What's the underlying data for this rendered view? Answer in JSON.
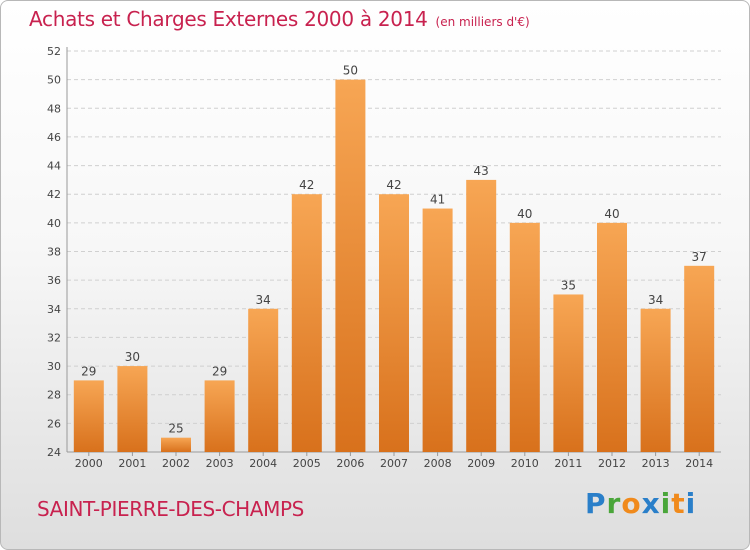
{
  "title": "Achats et Charges Externes 2000 à 2014",
  "unit_note": "(en milliers d'€)",
  "commune": "SAINT-PIERRE-DES-CHAMPS",
  "logo": {
    "text": "Proxiti",
    "letters": [
      "P",
      "r",
      "o",
      "x",
      "i",
      "t",
      "i"
    ],
    "colors": [
      "#2a7fc9",
      "#4aa63a",
      "#f08a1c",
      "#2a7fc9",
      "#4aa63a",
      "#f08a1c",
      "#2a7fc9"
    ]
  },
  "colors": {
    "accent": "#c8224f",
    "bar_top": "#f7a654",
    "bar_bottom": "#d8711c",
    "grid": "#d0d0d0",
    "text": "#444444"
  },
  "chart_data": {
    "type": "bar",
    "title": "Achats et Charges Externes 2000 à 2014",
    "subtitle": "(en milliers d'€)",
    "categories": [
      "2000",
      "2001",
      "2002",
      "2003",
      "2004",
      "2005",
      "2006",
      "2007",
      "2008",
      "2009",
      "2010",
      "2011",
      "2012",
      "2013",
      "2014"
    ],
    "values": [
      29,
      30,
      25,
      29,
      34,
      42,
      50,
      42,
      41,
      43,
      40,
      35,
      40,
      34,
      37
    ],
    "ylim": [
      24,
      52
    ],
    "yticks": [
      24,
      26,
      28,
      30,
      32,
      34,
      36,
      38,
      40,
      42,
      44,
      46,
      48,
      50,
      52
    ],
    "grid": true,
    "data_labels": true
  }
}
